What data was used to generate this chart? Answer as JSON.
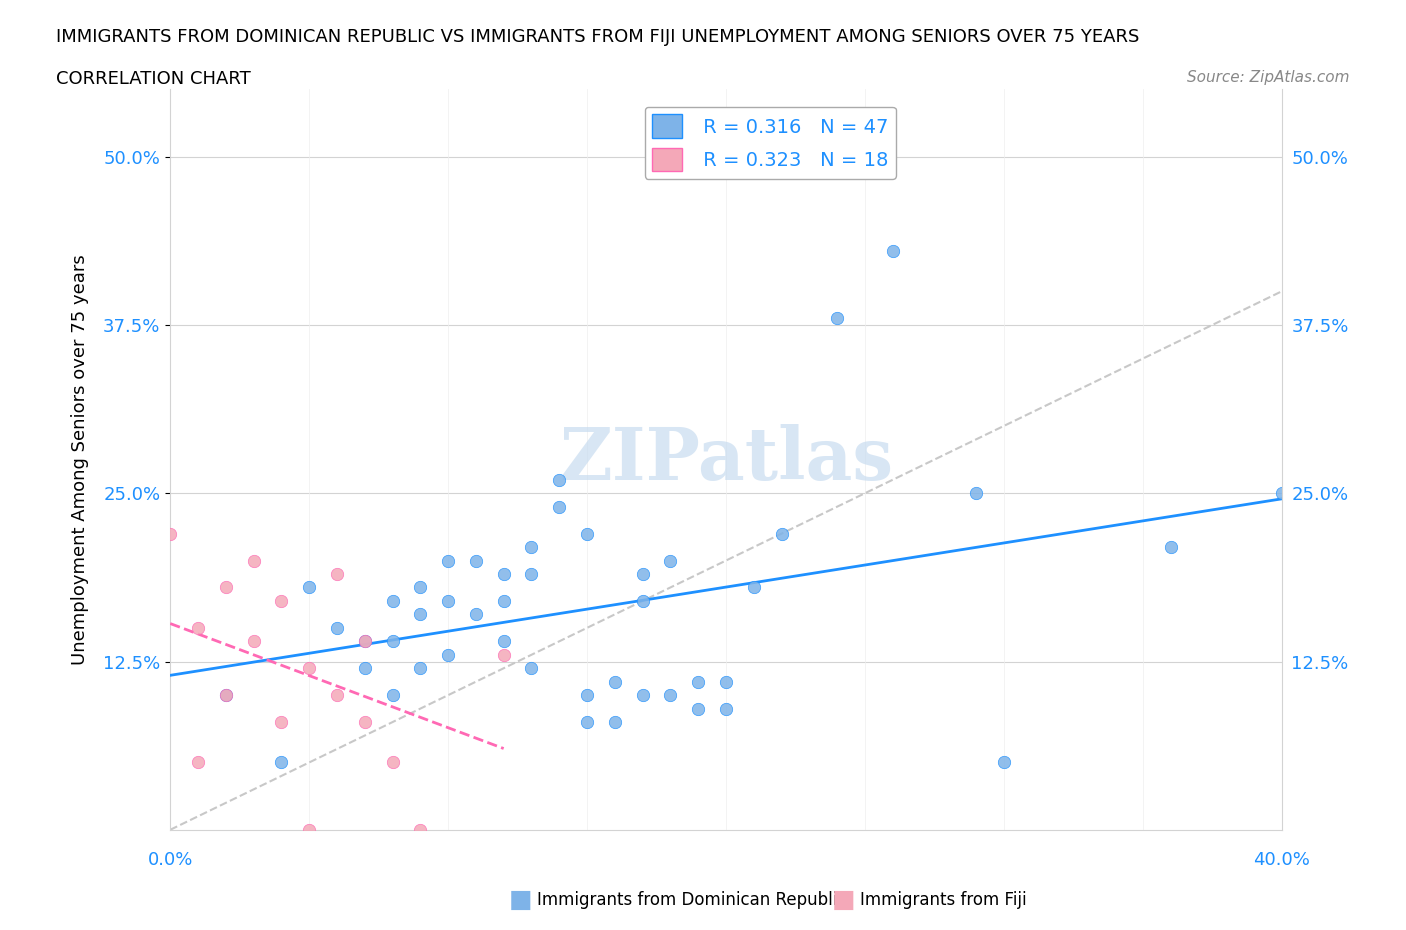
{
  "title_line1": "IMMIGRANTS FROM DOMINICAN REPUBLIC VS IMMIGRANTS FROM FIJI UNEMPLOYMENT AMONG SENIORS OVER 75 YEARS",
  "title_line2": "CORRELATION CHART",
  "source": "Source: ZipAtlas.com",
  "ylabel": "Unemployment Among Seniors over 75 years",
  "ytick_vals": [
    0.125,
    0.25,
    0.375,
    0.5
  ],
  "ytick_labels": [
    "12.5%",
    "25.0%",
    "37.5%",
    "50.0%"
  ],
  "xlim": [
    0.0,
    0.4
  ],
  "ylim": [
    0.0,
    0.55
  ],
  "color_dr": "#7EB3E8",
  "color_fiji": "#F4A8B8",
  "trendline_dr_color": "#1E90FF",
  "trendline_fiji_color": "#FF69B4",
  "diagonal_color": "#C8C8C8",
  "watermark": "ZIPatlas",
  "dr_scatter_x": [
    0.02,
    0.04,
    0.05,
    0.06,
    0.07,
    0.07,
    0.08,
    0.08,
    0.08,
    0.09,
    0.09,
    0.09,
    0.1,
    0.1,
    0.1,
    0.11,
    0.11,
    0.12,
    0.12,
    0.12,
    0.13,
    0.13,
    0.13,
    0.14,
    0.14,
    0.15,
    0.15,
    0.15,
    0.16,
    0.16,
    0.17,
    0.17,
    0.17,
    0.18,
    0.18,
    0.19,
    0.19,
    0.2,
    0.2,
    0.21,
    0.22,
    0.24,
    0.26,
    0.29,
    0.3,
    0.36,
    0.4
  ],
  "dr_scatter_y": [
    0.1,
    0.05,
    0.18,
    0.15,
    0.14,
    0.12,
    0.17,
    0.14,
    0.1,
    0.18,
    0.16,
    0.12,
    0.2,
    0.17,
    0.13,
    0.2,
    0.16,
    0.19,
    0.17,
    0.14,
    0.21,
    0.19,
    0.12,
    0.24,
    0.26,
    0.1,
    0.08,
    0.22,
    0.11,
    0.08,
    0.19,
    0.17,
    0.1,
    0.2,
    0.1,
    0.09,
    0.11,
    0.09,
    0.11,
    0.18,
    0.22,
    0.38,
    0.43,
    0.25,
    0.05,
    0.21,
    0.25
  ],
  "fiji_scatter_x": [
    0.0,
    0.01,
    0.01,
    0.02,
    0.02,
    0.03,
    0.03,
    0.04,
    0.04,
    0.05,
    0.05,
    0.06,
    0.06,
    0.07,
    0.07,
    0.08,
    0.09,
    0.12
  ],
  "fiji_scatter_y": [
    0.22,
    0.05,
    0.15,
    0.1,
    0.18,
    0.14,
    0.2,
    0.08,
    0.17,
    0.12,
    0.0,
    0.1,
    0.19,
    0.14,
    0.08,
    0.05,
    0.0,
    0.13
  ]
}
